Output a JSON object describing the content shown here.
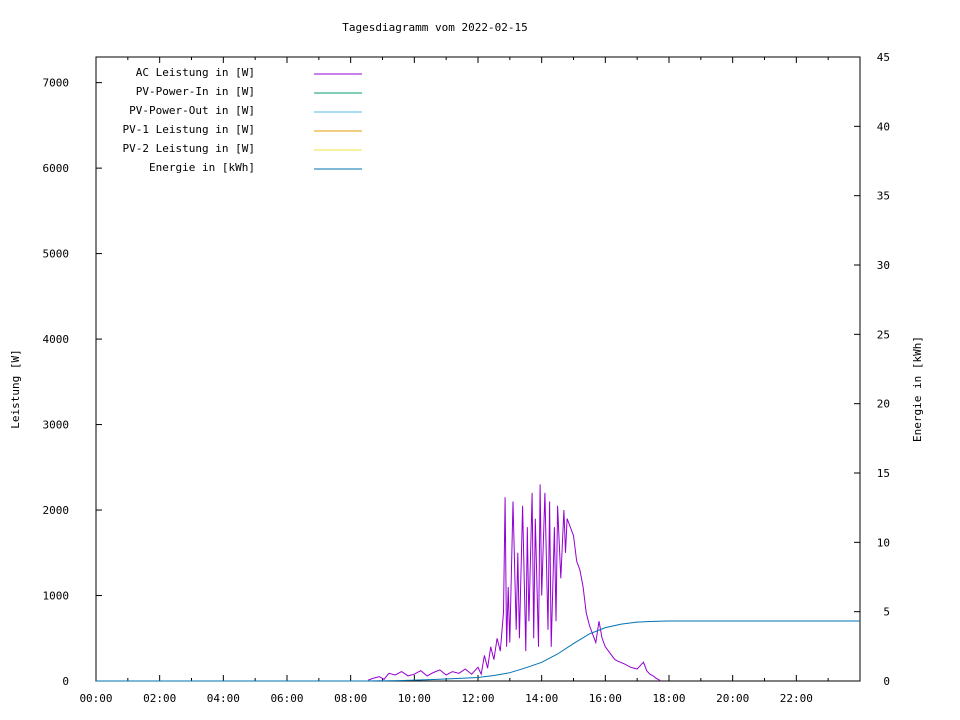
{
  "chart_data": {
    "type": "line",
    "title": "Tagesdiagramm vom 2022-02-15",
    "ylabel": "Leistung [W]",
    "y2label": "Energie in [kWh]",
    "xlim": [
      0,
      24
    ],
    "ylim": [
      0,
      7300
    ],
    "y2lim": [
      0,
      45
    ],
    "x_ticks": [
      {
        "value": 0,
        "label": "00:00"
      },
      {
        "value": 2,
        "label": "02:00"
      },
      {
        "value": 4,
        "label": "04:00"
      },
      {
        "value": 6,
        "label": "06:00"
      },
      {
        "value": 8,
        "label": "08:00"
      },
      {
        "value": 10,
        "label": "10:00"
      },
      {
        "value": 12,
        "label": "12:00"
      },
      {
        "value": 14,
        "label": "14:00"
      },
      {
        "value": 16,
        "label": "16:00"
      },
      {
        "value": 18,
        "label": "18:00"
      },
      {
        "value": 20,
        "label": "20:00"
      },
      {
        "value": 22,
        "label": "22:00"
      }
    ],
    "y_ticks": [
      {
        "value": 0,
        "label": "0"
      },
      {
        "value": 1000,
        "label": "1000"
      },
      {
        "value": 2000,
        "label": "2000"
      },
      {
        "value": 3000,
        "label": "3000"
      },
      {
        "value": 4000,
        "label": "4000"
      },
      {
        "value": 5000,
        "label": "5000"
      },
      {
        "value": 6000,
        "label": "6000"
      },
      {
        "value": 7000,
        "label": "7000"
      }
    ],
    "y2_ticks": [
      {
        "value": 0,
        "label": "0"
      },
      {
        "value": 5,
        "label": "5"
      },
      {
        "value": 10,
        "label": "10"
      },
      {
        "value": 15,
        "label": "15"
      },
      {
        "value": 20,
        "label": "20"
      },
      {
        "value": 25,
        "label": "25"
      },
      {
        "value": 30,
        "label": "30"
      },
      {
        "value": 35,
        "label": "35"
      },
      {
        "value": 40,
        "label": "40"
      },
      {
        "value": 45,
        "label": "45"
      }
    ],
    "legend_position": "top-left",
    "grid": false,
    "series": [
      {
        "name": "AC Leistung in [W]",
        "color": "#9400d3",
        "axis": "left",
        "x": [
          8.55,
          8.7,
          8.9,
          9.05,
          9.2,
          9.4,
          9.6,
          9.8,
          10.0,
          10.2,
          10.4,
          10.6,
          10.8,
          11.0,
          11.2,
          11.4,
          11.6,
          11.8,
          12.0,
          12.1,
          12.2,
          12.3,
          12.4,
          12.5,
          12.6,
          12.7,
          12.8,
          12.85,
          12.9,
          12.95,
          13.0,
          13.1,
          13.2,
          13.25,
          13.3,
          13.4,
          13.5,
          13.55,
          13.6,
          13.7,
          13.75,
          13.8,
          13.9,
          13.95,
          14.0,
          14.1,
          14.2,
          14.25,
          14.3,
          14.4,
          14.45,
          14.5,
          14.6,
          14.7,
          14.75,
          14.8,
          14.9,
          15.0,
          15.1,
          15.2,
          15.3,
          15.4,
          15.5,
          15.6,
          15.7,
          15.8,
          15.9,
          16.0,
          16.1,
          16.2,
          16.3,
          16.4,
          16.6,
          16.8,
          17.0,
          17.2,
          17.3,
          17.4,
          17.5,
          17.6,
          17.7,
          17.75
        ],
        "values": [
          10,
          30,
          50,
          20,
          90,
          70,
          110,
          60,
          80,
          120,
          60,
          100,
          130,
          70,
          110,
          90,
          140,
          80,
          160,
          80,
          300,
          150,
          400,
          250,
          500,
          350,
          800,
          2150,
          400,
          1100,
          450,
          2100,
          600,
          1500,
          500,
          2050,
          350,
          1800,
          700,
          2200,
          500,
          1900,
          400,
          2300,
          1000,
          2200,
          600,
          2100,
          400,
          1800,
          700,
          2050,
          1200,
          2000,
          1500,
          1900,
          1800,
          1700,
          1400,
          1300,
          1100,
          800,
          650,
          550,
          450,
          700,
          500,
          400,
          350,
          300,
          250,
          230,
          200,
          160,
          140,
          220,
          120,
          80,
          60,
          30,
          10,
          0
        ]
      },
      {
        "name": "PV-Power-In in [W]",
        "color": "#009e73",
        "axis": "left",
        "x": [],
        "values": []
      },
      {
        "name": "PV-Power-Out in [W]",
        "color": "#56b4e9",
        "axis": "left",
        "x": [],
        "values": []
      },
      {
        "name": "PV-1 Leistung in [W]",
        "color": "#e69f00",
        "axis": "left",
        "x": [],
        "values": []
      },
      {
        "name": "PV-2 Leistung in [W]",
        "color": "#f0e442",
        "axis": "left",
        "x": [],
        "values": []
      },
      {
        "name": "Energie in [kWh]",
        "color": "#0072b2",
        "axis": "right",
        "x": [
          0,
          8.5,
          9.5,
          10.5,
          11.5,
          12.0,
          12.5,
          13.0,
          13.5,
          14.0,
          14.5,
          15.0,
          15.5,
          16.0,
          16.5,
          17.0,
          17.5,
          18.0,
          24.0
        ],
        "values": [
          0,
          0,
          0.03,
          0.1,
          0.2,
          0.25,
          0.4,
          0.6,
          0.95,
          1.35,
          1.95,
          2.7,
          3.4,
          3.85,
          4.1,
          4.25,
          4.3,
          4.33,
          4.33
        ]
      }
    ]
  }
}
